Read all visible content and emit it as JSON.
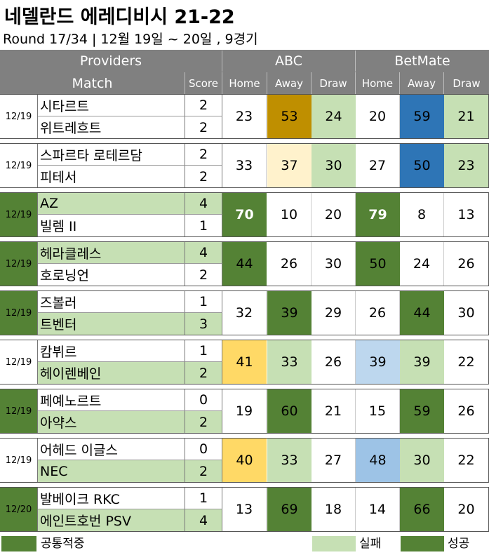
{
  "title": "네델란드 에레디비시 21-22",
  "subtitle": "Round 17/34 | 12월 19일 ~ 20일 , 9경기",
  "header": {
    "providers": "Providers",
    "match": "Match",
    "score": "Score",
    "abc": "ABC",
    "betmate": "BetMate",
    "home": "Home",
    "away": "Away",
    "draw": "Draw"
  },
  "colors": {
    "dark_green": "#548235",
    "light_green": "#c6e0b4",
    "gold": "#bf8f00",
    "pale_yellow": "#fff2cc",
    "yellow": "#ffd966",
    "blue": "#2e75b6",
    "light_blue": "#bdd7ee",
    "mid_blue": "#9dc3e6",
    "white": "#ffffff"
  },
  "matches": [
    {
      "date": "12/19",
      "date_color": "white",
      "home": "시타르트",
      "away": "위트레흐트",
      "home_score": "2",
      "away_score": "2",
      "home_team_color": "white",
      "away_team_color": "white",
      "abc": [
        "23",
        "53",
        "24"
      ],
      "abc_colors": [
        "white",
        "gold",
        "light_green"
      ],
      "betmate": [
        "20",
        "59",
        "21"
      ],
      "betmate_colors": [
        "white",
        "blue",
        "light_green"
      ],
      "bold": [
        false,
        false,
        false,
        false,
        false,
        false
      ]
    },
    {
      "date": "12/19",
      "date_color": "white",
      "home": "스파르타 로테르담",
      "away": "피테서",
      "home_score": "2",
      "away_score": "2",
      "home_team_color": "white",
      "away_team_color": "white",
      "abc": [
        "33",
        "37",
        "30"
      ],
      "abc_colors": [
        "white",
        "pale_yellow",
        "light_green"
      ],
      "betmate": [
        "27",
        "50",
        "23"
      ],
      "betmate_colors": [
        "white",
        "blue",
        "light_green"
      ],
      "bold": [
        false,
        false,
        false,
        false,
        false,
        false
      ]
    },
    {
      "date": "12/19",
      "date_color": "dark_green",
      "home": "AZ",
      "away": "빌렘 II",
      "home_score": "4",
      "away_score": "1",
      "home_team_color": "light_green",
      "away_team_color": "white",
      "abc": [
        "70",
        "10",
        "20"
      ],
      "abc_colors": [
        "dark_green",
        "white",
        "white"
      ],
      "betmate": [
        "79",
        "8",
        "13"
      ],
      "betmate_colors": [
        "dark_green",
        "white",
        "white"
      ],
      "bold": [
        true,
        false,
        false,
        true,
        false,
        false
      ]
    },
    {
      "date": "12/19",
      "date_color": "dark_green",
      "home": "헤라클레스",
      "away": "호로닝언",
      "home_score": "4",
      "away_score": "2",
      "home_team_color": "light_green",
      "away_team_color": "white",
      "abc": [
        "44",
        "26",
        "30"
      ],
      "abc_colors": [
        "dark_green",
        "white",
        "white"
      ],
      "betmate": [
        "50",
        "24",
        "26"
      ],
      "betmate_colors": [
        "dark_green",
        "white",
        "white"
      ],
      "bold": [
        false,
        false,
        false,
        false,
        false,
        false
      ]
    },
    {
      "date": "12/19",
      "date_color": "dark_green",
      "home": "즈볼러",
      "away": "트벤터",
      "home_score": "1",
      "away_score": "3",
      "home_team_color": "white",
      "away_team_color": "light_green",
      "abc": [
        "32",
        "39",
        "29"
      ],
      "abc_colors": [
        "white",
        "dark_green",
        "white"
      ],
      "betmate": [
        "26",
        "44",
        "30"
      ],
      "betmate_colors": [
        "white",
        "dark_green",
        "white"
      ],
      "bold": [
        false,
        false,
        false,
        false,
        false,
        false
      ]
    },
    {
      "date": "12/19",
      "date_color": "white",
      "home": "캄뷔르",
      "away": "헤이렌베인",
      "home_score": "1",
      "away_score": "2",
      "home_team_color": "white",
      "away_team_color": "light_green",
      "abc": [
        "41",
        "33",
        "26"
      ],
      "abc_colors": [
        "yellow",
        "light_green",
        "white"
      ],
      "betmate": [
        "39",
        "39",
        "22"
      ],
      "betmate_colors": [
        "light_blue",
        "light_green",
        "white"
      ],
      "bold": [
        false,
        false,
        false,
        false,
        false,
        false
      ]
    },
    {
      "date": "12/19",
      "date_color": "dark_green",
      "home": "페예노르트",
      "away": "아약스",
      "home_score": "0",
      "away_score": "2",
      "home_team_color": "white",
      "away_team_color": "light_green",
      "abc": [
        "19",
        "60",
        "21"
      ],
      "abc_colors": [
        "white",
        "dark_green",
        "white"
      ],
      "betmate": [
        "15",
        "59",
        "26"
      ],
      "betmate_colors": [
        "white",
        "dark_green",
        "white"
      ],
      "bold": [
        false,
        false,
        false,
        false,
        false,
        false
      ]
    },
    {
      "date": "12/19",
      "date_color": "white",
      "home": "어헤드 이글스",
      "away": "NEC",
      "home_score": "0",
      "away_score": "2",
      "home_team_color": "white",
      "away_team_color": "light_green",
      "abc": [
        "40",
        "33",
        "27"
      ],
      "abc_colors": [
        "yellow",
        "light_green",
        "white"
      ],
      "betmate": [
        "48",
        "30",
        "22"
      ],
      "betmate_colors": [
        "mid_blue",
        "light_green",
        "white"
      ],
      "bold": [
        false,
        false,
        false,
        false,
        false,
        false
      ]
    },
    {
      "date": "12/20",
      "date_color": "dark_green",
      "home": "발베이크 RKC",
      "away": "에인트호번 PSV",
      "home_score": "1",
      "away_score": "4",
      "home_team_color": "white",
      "away_team_color": "light_green",
      "abc": [
        "13",
        "69",
        "18"
      ],
      "abc_colors": [
        "white",
        "dark_green",
        "white"
      ],
      "betmate": [
        "14",
        "66",
        "20"
      ],
      "betmate_colors": [
        "white",
        "dark_green",
        "white"
      ],
      "bold": [
        false,
        false,
        false,
        false,
        false,
        false
      ]
    }
  ],
  "legend": [
    {
      "label": "공통적중",
      "color": "dark_green"
    },
    {
      "label": "실패",
      "color": "light_green"
    },
    {
      "label": "성공",
      "color": "dark_green"
    }
  ]
}
